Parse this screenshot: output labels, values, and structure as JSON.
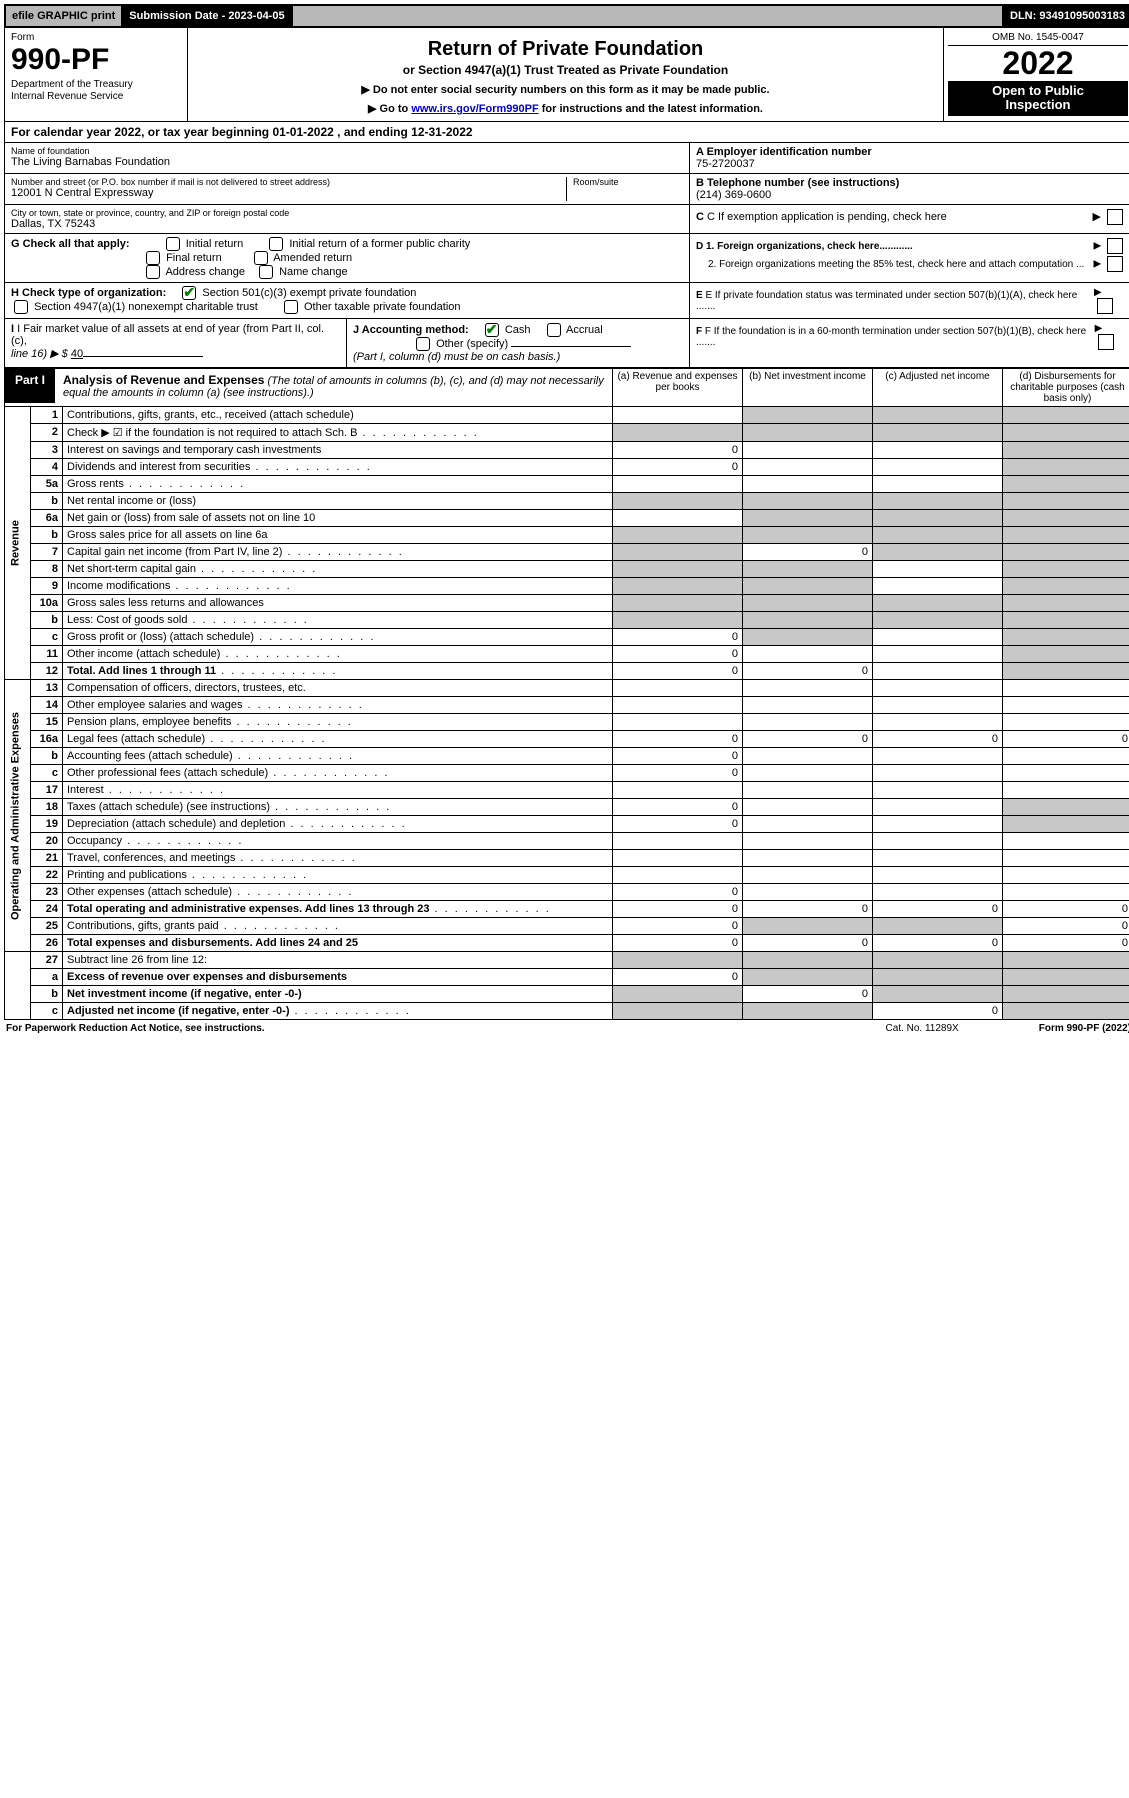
{
  "top": {
    "efile": "efile GRAPHIC print",
    "submission_label": "Submission Date - 2023-04-05",
    "dln": "DLN: 93491095003183"
  },
  "header": {
    "form_word": "Form",
    "form_no": "990-PF",
    "dept1": "Department of the Treasury",
    "dept2": "Internal Revenue Service",
    "title": "Return of Private Foundation",
    "subtitle": "or Section 4947(a)(1) Trust Treated as Private Foundation",
    "note1": "▶ Do not enter social security numbers on this form as it may be made public.",
    "note2_pre": "▶ Go to ",
    "note2_link": "www.irs.gov/Form990PF",
    "note2_post": " for instructions and the latest information.",
    "omb": "OMB No. 1545-0047",
    "year": "2022",
    "open1": "Open to Public",
    "open2": "Inspection"
  },
  "calyear": "For calendar year 2022, or tax year beginning 01-01-2022             , and ending 12-31-2022",
  "id": {
    "name_label": "Name of foundation",
    "name": "The Living Barnabas Foundation",
    "ein_label": "A Employer identification number",
    "ein": "75-2720037",
    "addr_label": "Number and street (or P.O. box number if mail is not delivered to street address)",
    "addr": "12001 N Central Expressway",
    "room_label": "Room/suite",
    "tel_label": "B Telephone number (see instructions)",
    "tel": "(214) 369-0600",
    "city_label": "City or town, state or province, country, and ZIP or foreign postal code",
    "city": "Dallas, TX  75243",
    "c_label": "C If exemption application is pending, check here",
    "g_label": "G Check all that apply:",
    "g_opts": [
      "Initial return",
      "Initial return of a former public charity",
      "Final return",
      "Amended return",
      "Address change",
      "Name change"
    ],
    "d1": "D 1. Foreign organizations, check here............",
    "d2": "2. Foreign organizations meeting the 85% test, check here and attach computation ...",
    "h_label": "H Check type of organization:",
    "h1": "Section 501(c)(3) exempt private foundation",
    "h2": "Section 4947(a)(1) nonexempt charitable trust",
    "h3": "Other taxable private foundation",
    "e_label": "E  If private foundation status was terminated under section 507(b)(1)(A), check here .......",
    "i_label": "I Fair market value of all assets at end of year (from Part II, col. (c),",
    "i_line16": "line 16)  ▶ $ ",
    "i_value": "40",
    "j_label": "J Accounting method:",
    "j_cash": "Cash",
    "j_accrual": "Accrual",
    "j_other": "Other (specify)",
    "j_note": "(Part I, column (d) must be on cash basis.)",
    "f_label": "F  If the foundation is in a 60-month termination under section 507(b)(1)(B), check here ......."
  },
  "part1": {
    "badge": "Part I",
    "title": "Analysis of Revenue and Expenses",
    "title_note": " (The total of amounts in columns (b), (c), and (d) may not necessarily equal the amounts in column (a) (see instructions).)",
    "cols": {
      "a": "(a)   Revenue and expenses per books",
      "b": "(b)   Net investment income",
      "c": "(c)   Adjusted net income",
      "d": "(d)   Disbursements for charitable purposes (cash basis only)"
    }
  },
  "sections": {
    "rev": "Revenue",
    "exp": "Operating and Administrative Expenses"
  },
  "rows": [
    {
      "n": "1",
      "t": "Contributions, gifts, grants, etc., received (attach schedule)",
      "a": "",
      "b": "",
      "c": "",
      "d": "",
      "sb": true,
      "sc": true,
      "sd": true
    },
    {
      "n": "2",
      "t": "Check ▶ ☑ if the foundation is not required to attach Sch. B",
      "a": "",
      "b": "",
      "c": "",
      "d": "",
      "sa": true,
      "sb": true,
      "sc": true,
      "sd": true,
      "dots": true
    },
    {
      "n": "3",
      "t": "Interest on savings and temporary cash investments",
      "a": "0",
      "b": "",
      "c": "",
      "d": "",
      "sd": true
    },
    {
      "n": "4",
      "t": "Dividends and interest from securities",
      "a": "0",
      "b": "",
      "c": "",
      "d": "",
      "sd": true,
      "dots": true
    },
    {
      "n": "5a",
      "t": "Gross rents",
      "a": "",
      "b": "",
      "c": "",
      "d": "",
      "sd": true,
      "dots": true
    },
    {
      "n": "b",
      "t": "Net rental income or (loss)",
      "a": "",
      "b": "",
      "c": "",
      "d": "",
      "sa": true,
      "sb": true,
      "sc": true,
      "sd": true
    },
    {
      "n": "6a",
      "t": "Net gain or (loss) from sale of assets not on line 10",
      "a": "",
      "b": "",
      "c": "",
      "d": "",
      "sb": true,
      "sc": true,
      "sd": true
    },
    {
      "n": "b",
      "t": "Gross sales price for all assets on line 6a",
      "a": "",
      "b": "",
      "c": "",
      "d": "",
      "sa": true,
      "sb": true,
      "sc": true,
      "sd": true
    },
    {
      "n": "7",
      "t": "Capital gain net income (from Part IV, line 2)",
      "a": "",
      "b": "0",
      "c": "",
      "d": "",
      "sa": true,
      "sc": true,
      "sd": true,
      "dots": true
    },
    {
      "n": "8",
      "t": "Net short-term capital gain",
      "a": "",
      "b": "",
      "c": "",
      "d": "",
      "sa": true,
      "sb": true,
      "sd": true,
      "dots": true
    },
    {
      "n": "9",
      "t": "Income modifications",
      "a": "",
      "b": "",
      "c": "",
      "d": "",
      "sa": true,
      "sb": true,
      "sd": true,
      "dots": true
    },
    {
      "n": "10a",
      "t": "Gross sales less returns and allowances",
      "a": "",
      "b": "",
      "c": "",
      "d": "",
      "sa": true,
      "sb": true,
      "sc": true,
      "sd": true
    },
    {
      "n": "b",
      "t": "Less: Cost of goods sold",
      "a": "",
      "b": "",
      "c": "",
      "d": "",
      "sa": true,
      "sb": true,
      "sc": true,
      "sd": true,
      "dots": true
    },
    {
      "n": "c",
      "t": "Gross profit or (loss) (attach schedule)",
      "a": "0",
      "b": "",
      "c": "",
      "d": "",
      "sb": true,
      "sd": true,
      "dots": true
    },
    {
      "n": "11",
      "t": "Other income (attach schedule)",
      "a": "0",
      "b": "",
      "c": "",
      "d": "",
      "sd": true,
      "dots": true
    },
    {
      "n": "12",
      "t": "Total. Add lines 1 through 11",
      "a": "0",
      "b": "0",
      "c": "",
      "d": "",
      "bold": true,
      "sd": true,
      "dots": true
    }
  ],
  "rows2": [
    {
      "n": "13",
      "t": "Compensation of officers, directors, trustees, etc.",
      "a": "",
      "b": "",
      "c": "",
      "d": ""
    },
    {
      "n": "14",
      "t": "Other employee salaries and wages",
      "a": "",
      "b": "",
      "c": "",
      "d": "",
      "dots": true
    },
    {
      "n": "15",
      "t": "Pension plans, employee benefits",
      "a": "",
      "b": "",
      "c": "",
      "d": "",
      "dots": true
    },
    {
      "n": "16a",
      "t": "Legal fees (attach schedule)",
      "a": "0",
      "b": "0",
      "c": "0",
      "d": "0",
      "dots": true
    },
    {
      "n": "b",
      "t": "Accounting fees (attach schedule)",
      "a": "0",
      "b": "",
      "c": "",
      "d": "",
      "dots": true
    },
    {
      "n": "c",
      "t": "Other professional fees (attach schedule)",
      "a": "0",
      "b": "",
      "c": "",
      "d": "",
      "dots": true
    },
    {
      "n": "17",
      "t": "Interest",
      "a": "",
      "b": "",
      "c": "",
      "d": "",
      "dots": true
    },
    {
      "n": "18",
      "t": "Taxes (attach schedule) (see instructions)",
      "a": "0",
      "b": "",
      "c": "",
      "d": "",
      "sd": true,
      "dots": true
    },
    {
      "n": "19",
      "t": "Depreciation (attach schedule) and depletion",
      "a": "0",
      "b": "",
      "c": "",
      "d": "",
      "sd": true,
      "dots": true
    },
    {
      "n": "20",
      "t": "Occupancy",
      "a": "",
      "b": "",
      "c": "",
      "d": "",
      "dots": true
    },
    {
      "n": "21",
      "t": "Travel, conferences, and meetings",
      "a": "",
      "b": "",
      "c": "",
      "d": "",
      "dots": true
    },
    {
      "n": "22",
      "t": "Printing and publications",
      "a": "",
      "b": "",
      "c": "",
      "d": "",
      "dots": true
    },
    {
      "n": "23",
      "t": "Other expenses (attach schedule)",
      "a": "0",
      "b": "",
      "c": "",
      "d": "",
      "dots": true
    },
    {
      "n": "24",
      "t": "Total operating and administrative expenses. Add lines 13 through 23",
      "a": "0",
      "b": "0",
      "c": "0",
      "d": "0",
      "bold": true,
      "dots": true
    },
    {
      "n": "25",
      "t": "Contributions, gifts, grants paid",
      "a": "0",
      "b": "",
      "c": "",
      "d": "0",
      "sb": true,
      "sc": true,
      "dots": true
    },
    {
      "n": "26",
      "t": "Total expenses and disbursements. Add lines 24 and 25",
      "a": "0",
      "b": "0",
      "c": "0",
      "d": "0",
      "bold": true
    }
  ],
  "rows3": [
    {
      "n": "27",
      "t": "Subtract line 26 from line 12:",
      "a": "",
      "b": "",
      "c": "",
      "d": "",
      "sa": true,
      "sb": true,
      "sc": true,
      "sd": true
    },
    {
      "n": "a",
      "t": "Excess of revenue over expenses and disbursements",
      "a": "0",
      "b": "",
      "c": "",
      "d": "",
      "bold": true,
      "sb": true,
      "sc": true,
      "sd": true
    },
    {
      "n": "b",
      "t": "Net investment income (if negative, enter -0-)",
      "a": "",
      "b": "0",
      "c": "",
      "d": "",
      "bold": true,
      "sa": true,
      "sc": true,
      "sd": true
    },
    {
      "n": "c",
      "t": "Adjusted net income (if negative, enter -0-)",
      "a": "",
      "b": "",
      "c": "0",
      "d": "",
      "bold": true,
      "sa": true,
      "sb": true,
      "sd": true,
      "dots": true
    }
  ],
  "footer": {
    "left": "For Paperwork Reduction Act Notice, see instructions.",
    "mid": "Cat. No. 11289X",
    "right": "Form 990-PF (2022)"
  },
  "colors": {
    "shade": "#c8c8c8",
    "link": "#0000cc",
    "check": "#008000"
  }
}
